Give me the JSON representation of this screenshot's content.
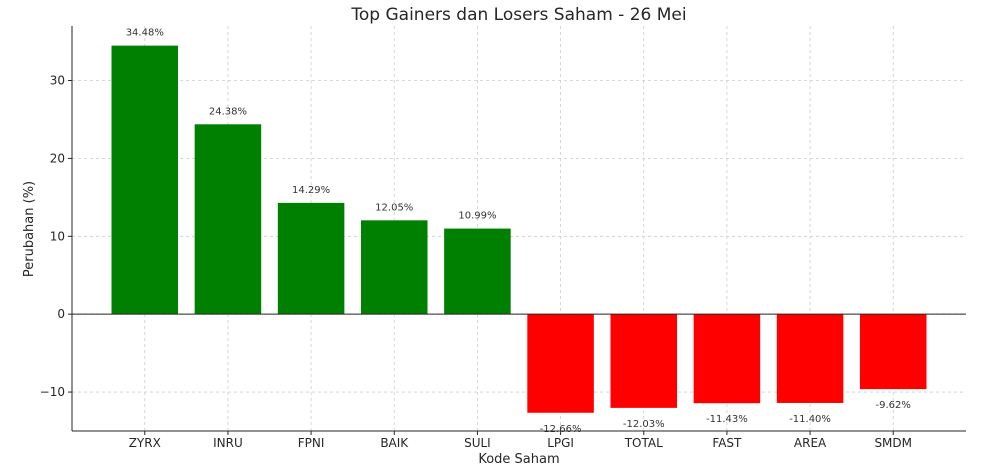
{
  "chart_data": {
    "type": "bar",
    "title": "Top Gainers dan Losers Saham - 26 Mei",
    "xlabel": "Kode Saham",
    "ylabel": "Perubahan (%)",
    "categories": [
      "ZYRX",
      "INRU",
      "FPNI",
      "BAIK",
      "SULI",
      "LPGI",
      "TOTAL",
      "FAST",
      "AREA",
      "SMDM"
    ],
    "values": [
      34.48,
      24.38,
      14.29,
      12.05,
      10.99,
      -12.66,
      -12.03,
      -11.43,
      -11.4,
      -9.62
    ],
    "data_labels": [
      "34.48%",
      "24.38%",
      "14.29%",
      "12.05%",
      "10.99%",
      "-12.66%",
      "-12.03%",
      "-11.43%",
      "-11.40%",
      "-9.62%"
    ],
    "colors": [
      "#008000",
      "#008000",
      "#008000",
      "#008000",
      "#008000",
      "#ff0000",
      "#ff0000",
      "#ff0000",
      "#ff0000",
      "#ff0000"
    ],
    "ylim": [
      -15,
      37
    ],
    "yticks": [
      -10,
      0,
      10,
      20,
      30
    ],
    "ytick_labels": [
      "−10",
      "0",
      "10",
      "20",
      "30"
    ],
    "grid": true,
    "zero_line": true,
    "legend": "none"
  }
}
